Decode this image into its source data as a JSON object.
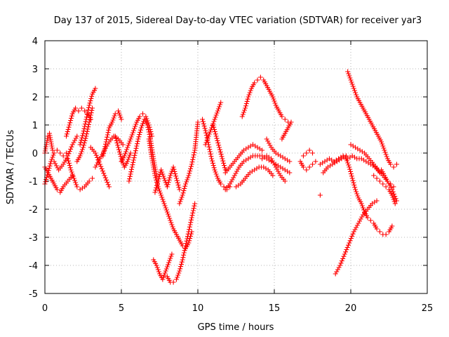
{
  "chart_data": {
    "type": "scatter",
    "title": "Day 137 of 2015, Sidereal Day-to-day VTEC variation (SDTVAR) for receiver yar3",
    "xlabel": "GPS time / hours",
    "ylabel": "SDTVAR / TECUs",
    "xlim": [
      0,
      25
    ],
    "ylim": [
      -5,
      4
    ],
    "xticks": [
      0,
      5,
      10,
      15,
      20,
      25
    ],
    "yticks": [
      -5,
      -4,
      -3,
      -2,
      -1,
      0,
      1,
      2,
      3,
      4
    ],
    "xtick_labels": [
      "0",
      "5",
      "10",
      "15",
      "20",
      "25"
    ],
    "ytick_labels": [
      "-5",
      "-4",
      "-3",
      "-2",
      "-1",
      "0",
      "1",
      "2",
      "3",
      "4"
    ],
    "grid": true,
    "marker": "plus",
    "color": "#ff0000",
    "series": [
      {
        "x": [
          0.0,
          0.2,
          0.4,
          0.6,
          0.8,
          1.0,
          1.2,
          1.4
        ],
        "y": [
          -1.1,
          -0.7,
          -0.3,
          0.0,
          0.1,
          0.0,
          -0.1,
          0.0
        ]
      },
      {
        "x": [
          0.0,
          0.2,
          0.4,
          0.6,
          0.8,
          1.0,
          1.2,
          1.5,
          1.8
        ],
        "y": [
          -0.5,
          -0.7,
          -0.9,
          -1.1,
          -1.3,
          -1.4,
          -1.2,
          -1.0,
          -0.8
        ]
      },
      {
        "x": [
          0.0,
          0.1,
          0.2,
          0.3,
          0.4,
          0.5
        ],
        "y": [
          0.0,
          0.3,
          0.6,
          0.7,
          0.4,
          0.1
        ]
      },
      {
        "x": [
          0.6,
          0.9,
          1.2,
          1.5,
          1.8,
          2.1
        ],
        "y": [
          -0.3,
          -0.6,
          -0.4,
          -0.1,
          0.3,
          0.6
        ]
      },
      {
        "x": [
          1.4,
          1.6,
          1.8,
          2.0,
          2.2,
          2.4,
          2.6,
          2.8,
          3.0
        ],
        "y": [
          0.6,
          1.0,
          1.4,
          1.6,
          1.5,
          1.6,
          1.5,
          1.4,
          1.2
        ]
      },
      {
        "x": [
          1.5,
          1.7,
          1.9,
          2.1,
          2.3,
          2.6,
          2.9,
          3.1
        ],
        "y": [
          -0.2,
          -0.6,
          -0.9,
          -1.2,
          -1.3,
          -1.2,
          -1.0,
          -0.9
        ]
      },
      {
        "x": [
          2.1,
          2.3,
          2.5,
          2.7,
          2.9,
          3.1
        ],
        "y": [
          -0.3,
          -0.1,
          0.2,
          0.6,
          1.1,
          1.6
        ]
      },
      {
        "x": [
          2.3,
          2.5,
          2.7,
          2.9,
          3.1,
          3.3
        ],
        "y": [
          0.3,
          0.7,
          1.2,
          1.7,
          2.1,
          2.3
        ]
      },
      {
        "x": [
          3.0,
          3.3,
          3.6,
          3.9,
          4.2
        ],
        "y": [
          0.2,
          0.0,
          -0.4,
          -0.8,
          -1.2
        ]
      },
      {
        "x": [
          3.3,
          3.6,
          3.9,
          4.2,
          4.5,
          4.8,
          5.1
        ],
        "y": [
          -0.5,
          -0.2,
          0.1,
          0.4,
          0.6,
          0.5,
          0.3
        ]
      },
      {
        "x": [
          3.8,
          4.0,
          4.2,
          4.4,
          4.6,
          4.8,
          5.0
        ],
        "y": [
          -0.1,
          0.4,
          0.9,
          1.1,
          1.4,
          1.5,
          1.2
        ]
      },
      {
        "x": [
          4.6,
          4.8,
          5.0,
          5.2,
          5.4,
          5.6
        ],
        "y": [
          0.6,
          0.2,
          -0.2,
          -0.5,
          -0.3,
          0.0
        ]
      },
      {
        "x": [
          5.0,
          5.2,
          5.4,
          5.6,
          5.8,
          6.0,
          6.2,
          6.4,
          6.6,
          6.8,
          7.0
        ],
        "y": [
          -0.3,
          -0.1,
          0.2,
          0.5,
          0.8,
          1.1,
          1.3,
          1.4,
          1.3,
          1.0,
          0.6
        ]
      },
      {
        "x": [
          5.5,
          5.7,
          5.9,
          6.1,
          6.3,
          6.5,
          6.7,
          6.9,
          7.1,
          7.3
        ],
        "y": [
          -1.0,
          -0.5,
          0.0,
          0.5,
          0.9,
          1.2,
          1.0,
          0.5,
          -0.2,
          -0.8
        ]
      },
      {
        "x": [
          6.8,
          7.0,
          7.2,
          7.4,
          7.6,
          7.8,
          8.0,
          8.2,
          8.4,
          8.6,
          8.8,
          9.0,
          9.2,
          9.4,
          9.6
        ],
        "y": [
          0.5,
          -0.2,
          -0.8,
          -1.2,
          -1.5,
          -1.8,
          -2.1,
          -2.4,
          -2.7,
          -2.9,
          -3.1,
          -3.3,
          -3.4,
          -3.2,
          -2.8
        ]
      },
      {
        "x": [
          7.2,
          7.4,
          7.6,
          7.8,
          8.0,
          8.2,
          8.4,
          8.6,
          8.8
        ],
        "y": [
          -1.4,
          -1.0,
          -0.6,
          -0.9,
          -1.2,
          -0.8,
          -0.5,
          -0.9,
          -1.3
        ]
      },
      {
        "x": [
          7.1,
          7.3,
          7.5,
          7.7,
          7.9,
          8.1,
          8.3
        ],
        "y": [
          -3.8,
          -4.0,
          -4.3,
          -4.5,
          -4.2,
          -3.9,
          -3.6
        ]
      },
      {
        "x": [
          8.0,
          8.2,
          8.4,
          8.6,
          8.8,
          9.0,
          9.2,
          9.4,
          9.6,
          9.8
        ],
        "y": [
          -4.4,
          -4.6,
          -4.6,
          -4.5,
          -4.2,
          -3.8,
          -3.3,
          -2.8,
          -2.3,
          -1.8
        ]
      },
      {
        "x": [
          8.8,
          9.0,
          9.2,
          9.4,
          9.6,
          9.8,
          10.0
        ],
        "y": [
          -1.8,
          -1.5,
          -1.1,
          -0.8,
          -0.4,
          0.1,
          1.1
        ]
      },
      {
        "x": [
          10.3,
          10.5,
          10.7,
          10.9,
          11.1,
          11.3,
          11.5,
          11.7,
          11.9,
          12.1
        ],
        "y": [
          1.2,
          0.8,
          0.3,
          -0.2,
          -0.6,
          -0.9,
          -1.1,
          -1.2,
          -1.3,
          -1.2
        ]
      },
      {
        "x": [
          10.5,
          10.7,
          10.9,
          11.1,
          11.3,
          11.5
        ],
        "y": [
          0.3,
          0.6,
          0.9,
          1.2,
          1.5,
          1.8
        ]
      },
      {
        "x": [
          11.0,
          11.2,
          11.4,
          11.6,
          11.8
        ],
        "y": [
          1.0,
          0.6,
          0.2,
          -0.2,
          -0.6
        ]
      },
      {
        "x": [
          11.8,
          12.1,
          12.4,
          12.7,
          13.0,
          13.3,
          13.6,
          13.9,
          14.2,
          14.5,
          14.8,
          15.1,
          15.4,
          15.7,
          16.0
        ],
        "y": [
          -1.3,
          -1.1,
          -0.8,
          -0.5,
          -0.3,
          -0.2,
          -0.1,
          -0.1,
          -0.1,
          -0.2,
          -0.3,
          -0.4,
          -0.5,
          -0.6,
          -0.7
        ]
      },
      {
        "x": [
          11.8,
          12.1,
          12.4,
          12.7,
          13.0,
          13.3,
          13.6,
          13.9,
          14.2
        ],
        "y": [
          -0.7,
          -0.5,
          -0.3,
          -0.1,
          0.1,
          0.2,
          0.3,
          0.2,
          0.1
        ]
      },
      {
        "x": [
          12.5,
          12.8,
          13.1,
          13.4,
          13.7,
          14.0,
          14.3,
          14.6,
          14.9
        ],
        "y": [
          -1.2,
          -1.1,
          -0.9,
          -0.7,
          -0.6,
          -0.5,
          -0.5,
          -0.6,
          -0.8
        ]
      },
      {
        "x": [
          12.9,
          13.1,
          13.3,
          13.5,
          13.7,
          13.9,
          14.1,
          14.3,
          14.5,
          14.7,
          14.9,
          15.1,
          15.3,
          15.5,
          15.7,
          15.9
        ],
        "y": [
          1.3,
          1.6,
          2.0,
          2.3,
          2.5,
          2.6,
          2.7,
          2.6,
          2.4,
          2.2,
          2.0,
          1.7,
          1.5,
          1.3,
          1.2,
          1.1
        ]
      },
      {
        "x": [
          14.2,
          14.5,
          14.8,
          15.1,
          15.4,
          15.7
        ],
        "y": [
          -0.2,
          -0.1,
          -0.2,
          -0.5,
          -0.8,
          -1.0
        ]
      },
      {
        "x": [
          14.5,
          14.8,
          15.1,
          15.4,
          15.7,
          16.0
        ],
        "y": [
          0.5,
          0.2,
          0.0,
          -0.1,
          -0.2,
          -0.3
        ]
      },
      {
        "x": [
          15.5,
          15.7,
          15.9,
          16.1
        ],
        "y": [
          0.5,
          0.7,
          0.9,
          1.1
        ]
      },
      {
        "x": [
          16.7,
          16.9,
          17.1,
          17.3,
          17.5,
          17.7
        ],
        "y": [
          -0.3,
          -0.5,
          -0.6,
          -0.5,
          -0.4,
          -0.3
        ]
      },
      {
        "x": [
          16.9,
          17.1,
          17.3,
          17.5
        ],
        "y": [
          -0.1,
          0.0,
          0.1,
          0.0
        ]
      },
      {
        "x": [
          18.0
        ],
        "y": [
          -1.5
        ]
      },
      {
        "x": [
          18.0,
          18.3,
          18.6,
          18.9,
          19.2,
          19.5,
          19.8,
          20.1,
          20.4,
          20.7,
          21.0,
          21.3,
          21.6,
          21.9
        ],
        "y": [
          -0.4,
          -0.3,
          -0.2,
          -0.3,
          -0.2,
          -0.1,
          -0.2,
          -0.1,
          -0.2,
          -0.2,
          -0.3,
          -0.4,
          -0.5,
          -0.7
        ]
      },
      {
        "x": [
          18.2,
          18.5,
          18.8,
          19.1,
          19.4,
          19.7
        ],
        "y": [
          -0.7,
          -0.5,
          -0.4,
          -0.3,
          -0.2,
          -0.1
        ]
      },
      {
        "x": [
          19.8,
          20.0,
          20.2,
          20.4,
          20.6,
          20.8,
          21.0,
          21.2,
          21.4,
          21.6,
          21.8,
          22.0,
          22.2,
          22.4,
          22.6,
          22.8,
          23.0
        ],
        "y": [
          2.9,
          2.6,
          2.3,
          2.0,
          1.8,
          1.6,
          1.4,
          1.2,
          1.0,
          0.8,
          0.6,
          0.4,
          0.1,
          -0.2,
          -0.4,
          -0.5,
          -0.4
        ]
      },
      {
        "x": [
          19.7,
          19.9,
          20.1,
          20.3,
          20.5,
          20.7,
          20.9,
          21.1,
          21.3,
          21.5,
          21.7,
          21.9,
          22.1,
          22.3,
          22.5,
          22.7
        ],
        "y": [
          -0.2,
          -0.5,
          -0.9,
          -1.3,
          -1.6,
          -1.8,
          -2.1,
          -2.3,
          -2.4,
          -2.5,
          -2.7,
          -2.8,
          -2.9,
          -2.9,
          -2.8,
          -2.6
        ]
      },
      {
        "x": [
          19.0,
          19.3,
          19.6,
          19.9,
          20.2,
          20.5,
          20.8,
          21.1,
          21.4,
          21.7
        ],
        "y": [
          -4.3,
          -4.0,
          -3.6,
          -3.2,
          -2.8,
          -2.5,
          -2.2,
          -2.0,
          -1.8,
          -1.7
        ]
      },
      {
        "x": [
          20.0,
          20.3,
          20.6,
          20.9,
          21.2,
          21.5,
          21.8,
          22.1,
          22.4,
          22.7,
          23.0
        ],
        "y": [
          0.3,
          0.2,
          0.1,
          0.0,
          -0.2,
          -0.4,
          -0.6,
          -0.8,
          -1.0,
          -1.3,
          -1.7
        ]
      },
      {
        "x": [
          21.5,
          21.7,
          21.9,
          22.1,
          22.3,
          22.5,
          22.7,
          22.9
        ],
        "y": [
          -0.8,
          -0.9,
          -1.0,
          -1.1,
          -1.2,
          -1.3,
          -1.5,
          -1.8
        ]
      },
      {
        "x": [
          22.0,
          22.2,
          22.4,
          22.6,
          22.8
        ],
        "y": [
          -0.6,
          -0.8,
          -1.0,
          -1.1,
          -1.2
        ]
      }
    ]
  }
}
